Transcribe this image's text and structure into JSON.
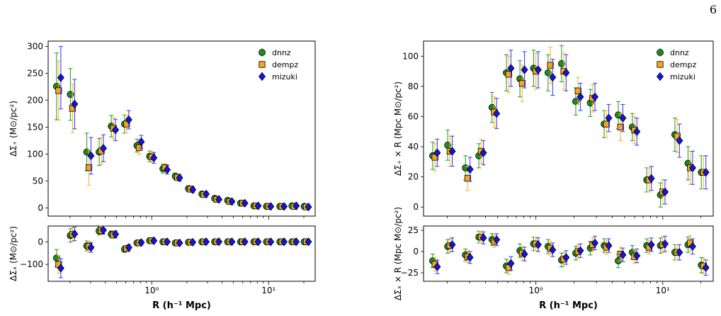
{
  "page_number": "6",
  "colors": {
    "dnnz": "#1e8c1e",
    "dempz": "#f5a51e",
    "mizuki": "#1414e6",
    "dnnz_err": "#2ca02c",
    "dempz_err": "#ffb733",
    "mizuki_err": "#3f3fff"
  },
  "chart_data": [
    {
      "type": "scatter",
      "id": "left-top",
      "xscale": "log",
      "xlim": [
        0.13,
        25
      ],
      "ylim": [
        -15,
        310
      ],
      "yticks": [
        "0",
        "50",
        "100",
        "150",
        "200",
        "250",
        "300"
      ],
      "ylabel": "ΔΣ₊ (M⊙/pc²)",
      "xlabel": "",
      "legend": "top-right",
      "x": [
        0.16,
        0.21,
        0.29,
        0.37,
        0.47,
        0.61,
        0.78,
        1.0,
        1.3,
        1.66,
        2.15,
        2.8,
        3.6,
        4.65,
        6.0,
        7.8,
        10.0,
        13.0,
        16.5,
        21.0
      ],
      "series": [
        {
          "name": "dnnz",
          "values": [
            226,
            211,
            104,
            104,
            152,
            156,
            116,
            96,
            73,
            59,
            36,
            26,
            18,
            14,
            9,
            4,
            3,
            3,
            4,
            3
          ],
          "err": [
            62,
            48,
            35,
            25,
            20,
            17,
            12,
            10,
            8,
            6,
            5,
            4,
            3,
            3,
            3,
            3,
            3,
            3,
            3,
            3
          ]
        },
        {
          "name": "dempz",
          "values": [
            218,
            185,
            75,
            106,
            148,
            156,
            112,
            95,
            75,
            57,
            35,
            25,
            16,
            12,
            9,
            4,
            3,
            3,
            3,
            2
          ],
          "err": [
            55,
            45,
            33,
            25,
            20,
            17,
            12,
            10,
            8,
            6,
            5,
            4,
            3,
            3,
            3,
            3,
            3,
            3,
            3,
            3
          ]
        },
        {
          "name": "mizuki",
          "values": [
            242,
            193,
            97,
            111,
            145,
            164,
            123,
            93,
            71,
            56,
            34,
            26,
            16,
            12,
            9,
            4,
            3,
            3,
            4,
            2
          ],
          "err": [
            58,
            46,
            34,
            25,
            20,
            17,
            12,
            10,
            8,
            6,
            5,
            4,
            3,
            3,
            3,
            3,
            3,
            3,
            3,
            3
          ]
        }
      ]
    },
    {
      "type": "scatter",
      "id": "left-bottom",
      "xscale": "log",
      "xlim": [
        0.13,
        25
      ],
      "ylim": [
        -175,
        70
      ],
      "yticks": [
        "−100",
        "0"
      ],
      "xticklabels": [
        "10⁰",
        "10¹"
      ],
      "ylabel": "ΔΣₓ (M⊙/pc²)",
      "xlabel": "R (h⁻¹ Mpc)",
      "x": [
        0.16,
        0.21,
        0.29,
        0.37,
        0.47,
        0.61,
        0.78,
        1.0,
        1.3,
        1.66,
        2.15,
        2.8,
        3.6,
        4.65,
        6.0,
        7.8,
        10.0,
        13.0,
        16.5,
        21.0
      ],
      "series": [
        {
          "name": "dnnz",
          "values": [
            -72,
            28,
            -18,
            48,
            34,
            -33,
            -5,
            5,
            0,
            -5,
            -2,
            0,
            0,
            0,
            0,
            0,
            0,
            0,
            0,
            0
          ],
          "err": [
            38,
            30,
            22,
            18,
            14,
            12,
            9,
            7,
            6,
            5,
            4,
            4,
            3,
            3,
            3,
            3,
            3,
            3,
            3,
            3
          ]
        },
        {
          "name": "dempz",
          "values": [
            -100,
            33,
            -20,
            50,
            30,
            -30,
            -5,
            5,
            0,
            -5,
            -2,
            0,
            0,
            0,
            0,
            0,
            0,
            0,
            0,
            0
          ],
          "err": [
            40,
            30,
            22,
            18,
            14,
            12,
            9,
            7,
            6,
            5,
            4,
            4,
            3,
            3,
            3,
            3,
            3,
            3,
            3,
            3
          ]
        },
        {
          "name": "mizuki",
          "values": [
            -117,
            35,
            -25,
            52,
            34,
            -25,
            -3,
            5,
            0,
            -5,
            -2,
            0,
            0,
            0,
            0,
            0,
            0,
            0,
            0,
            0
          ],
          "err": [
            42,
            30,
            22,
            18,
            14,
            12,
            9,
            7,
            6,
            5,
            4,
            4,
            3,
            3,
            3,
            3,
            3,
            3,
            3,
            3
          ]
        }
      ]
    },
    {
      "type": "scatter",
      "id": "right-top",
      "xscale": "log",
      "xlim": [
        0.13,
        25
      ],
      "ylim": [
        -6,
        110
      ],
      "yticks": [
        "0",
        "20",
        "40",
        "60",
        "80",
        "100"
      ],
      "ylabel": "ΔΣ₊ × R (Mpc M⊙/pc²)",
      "xlabel": "",
      "legend": "top-right",
      "x": [
        0.16,
        0.21,
        0.29,
        0.37,
        0.47,
        0.61,
        0.78,
        1.0,
        1.3,
        1.66,
        2.15,
        2.8,
        3.6,
        4.65,
        6.0,
        7.8,
        10.0,
        13.0,
        16.5,
        21.0
      ],
      "series": [
        {
          "name": "dnnz",
          "values": [
            34,
            41,
            26,
            34,
            66,
            89,
            85,
            92,
            89,
            95,
            70,
            69,
            55,
            61,
            53,
            18,
            8,
            48,
            29,
            23
          ],
          "err": [
            9,
            10,
            8,
            8,
            10,
            12,
            12,
            12,
            12,
            12,
            9,
            9,
            9,
            9,
            9,
            8,
            8,
            11,
            11,
            11
          ]
        },
        {
          "name": "dempz",
          "values": [
            33,
            37,
            19,
            37,
            63,
            88,
            82,
            90,
            94,
            90,
            77,
            72,
            55,
            53,
            51,
            18,
            10,
            47,
            26,
            23
          ],
          "err": [
            9,
            10,
            8,
            8,
            10,
            12,
            12,
            12,
            12,
            12,
            9,
            9,
            9,
            9,
            9,
            8,
            8,
            11,
            11,
            11
          ]
        },
        {
          "name": "mizuki",
          "values": [
            36,
            37,
            25,
            36,
            62,
            92,
            91,
            91,
            86,
            89,
            73,
            73,
            59,
            59,
            50,
            19,
            10,
            44,
            26,
            23
          ],
          "err": [
            9,
            10,
            8,
            8,
            10,
            12,
            12,
            12,
            12,
            12,
            9,
            9,
            9,
            9,
            9,
            8,
            8,
            11,
            11,
            11
          ]
        }
      ]
    },
    {
      "type": "scatter",
      "id": "right-bottom",
      "xscale": "log",
      "xlim": [
        0.13,
        25
      ],
      "ylim": [
        -35,
        30
      ],
      "yticks": [
        "−25",
        "0",
        "25"
      ],
      "xticklabels": [
        "10⁰",
        "10¹"
      ],
      "ylabel": "ΔΣₓ × R (Mpc M⊙/pc²)",
      "xlabel": "R (h⁻¹ Mpc)",
      "x": [
        0.16,
        0.21,
        0.29,
        0.37,
        0.47,
        0.61,
        0.78,
        1.0,
        1.3,
        1.66,
        2.15,
        2.8,
        3.6,
        4.65,
        6.0,
        7.8,
        10.0,
        13.0,
        16.5,
        21.0
      ],
      "series": [
        {
          "name": "dnnz",
          "values": [
            -11,
            6,
            -4,
            17,
            14,
            -17,
            1,
            9,
            6,
            -10,
            -2,
            4,
            7,
            -11,
            -1,
            7,
            7,
            -1,
            8,
            -16
          ],
          "err": [
            8,
            8,
            7,
            7,
            7,
            8,
            8,
            8,
            8,
            8,
            8,
            8,
            8,
            8,
            8,
            8,
            9,
            9,
            9,
            9
          ]
        },
        {
          "name": "dempz",
          "values": [
            -15,
            7,
            -6,
            17,
            12,
            -19,
            -2,
            9,
            4,
            -9,
            0,
            8,
            5,
            -3,
            -6,
            5,
            8,
            -1,
            10,
            -17
          ],
          "err": [
            8,
            8,
            7,
            7,
            7,
            8,
            8,
            8,
            8,
            8,
            8,
            8,
            8,
            8,
            8,
            8,
            9,
            9,
            9,
            9
          ]
        },
        {
          "name": "mizuki",
          "values": [
            -18,
            8,
            -7,
            16,
            14,
            -14,
            -3,
            8,
            2,
            -7,
            1,
            10,
            7,
            -4,
            -5,
            8,
            9,
            -1,
            6,
            -19
          ],
          "err": [
            8,
            8,
            7,
            7,
            7,
            8,
            8,
            8,
            8,
            8,
            8,
            8,
            8,
            8,
            8,
            8,
            9,
            9,
            9,
            9
          ]
        }
      ]
    }
  ]
}
